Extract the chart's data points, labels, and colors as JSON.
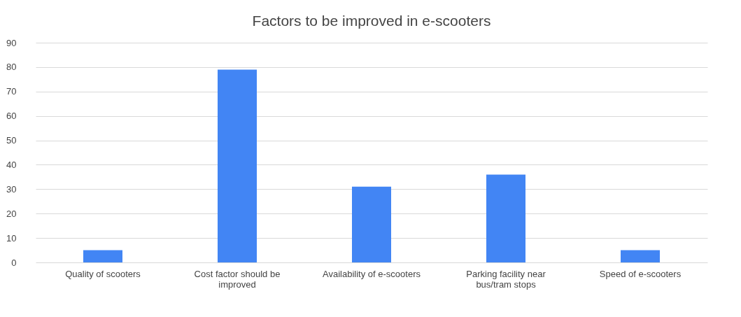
{
  "chart_data": {
    "type": "bar",
    "title": "Factors to be improved in e-scooters",
    "categories": [
      "Quality of scooters",
      "Cost factor should be improved",
      "Availability of e-scooters",
      "Parking facility near bus/tram stops",
      "Speed of e-scooters"
    ],
    "values": [
      5,
      79,
      31,
      36,
      5
    ],
    "color": "#4285f4",
    "ylim": [
      0,
      90
    ],
    "yticks": [
      0,
      10,
      20,
      30,
      40,
      50,
      60,
      70,
      80,
      90
    ],
    "grid": "y"
  }
}
